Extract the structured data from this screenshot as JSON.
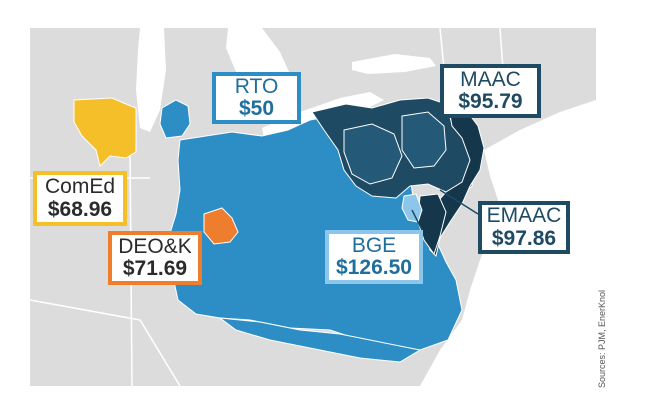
{
  "regions": [
    {
      "id": "rto",
      "name": "RTO",
      "price": "$50",
      "color": "#2d8ec6"
    },
    {
      "id": "maac",
      "name": "MAAC",
      "price": "$95.79",
      "color": "#1e4a63"
    },
    {
      "id": "comed",
      "name": "ComEd",
      "price": "$68.96",
      "color": "#f5bf2a"
    },
    {
      "id": "deok",
      "name": "DEO&K",
      "price": "$71.69",
      "color": "#ef7d2e"
    },
    {
      "id": "bge",
      "name": "BGE",
      "price": "$126.50",
      "color": "#8cc7eb"
    },
    {
      "id": "emaac",
      "name": "EMAAC",
      "price": "$97.86",
      "color": "#1e4a63"
    }
  ],
  "source": "Sources: PJM, EnerKnol",
  "colors": {
    "land": "#dcdcdc",
    "water": "#ffffff",
    "borders": "#ffffff"
  }
}
